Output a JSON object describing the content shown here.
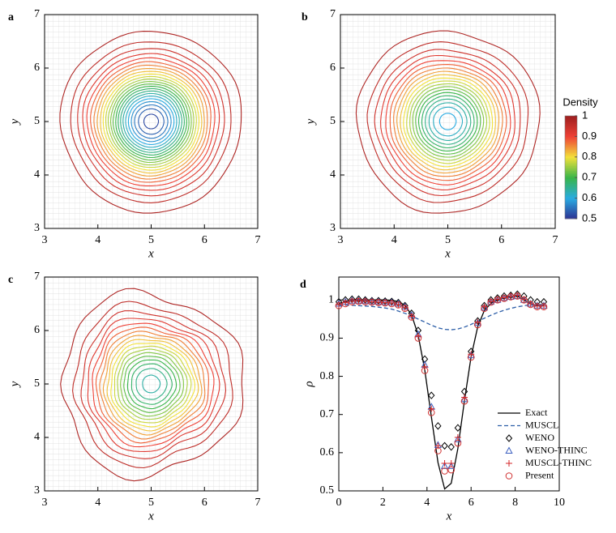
{
  "chart_data": [
    {
      "type": "contour",
      "panel_label": "a",
      "xlabel": "x",
      "ylabel": "y",
      "xlim": [
        3,
        7
      ],
      "ylim": [
        3,
        7
      ],
      "xticks": [
        3,
        4,
        5,
        6,
        7
      ],
      "yticks": [
        3,
        4,
        5,
        6,
        7
      ],
      "levels": [
        0.52,
        0.54,
        0.56,
        0.58,
        0.6,
        0.62,
        0.64,
        0.66,
        0.68,
        0.7,
        0.72,
        0.74,
        0.76,
        0.78,
        0.8,
        0.82,
        0.84,
        0.86,
        0.88,
        0.9,
        0.92,
        0.94,
        0.96,
        0.98
      ]
    },
    {
      "type": "contour",
      "panel_label": "b",
      "xlabel": "x",
      "ylabel": "y",
      "xlim": [
        3,
        7
      ],
      "ylim": [
        3,
        7
      ],
      "xticks": [
        3,
        4,
        5,
        6,
        7
      ],
      "yticks": [
        3,
        4,
        5,
        6,
        7
      ],
      "levels": [
        0.6,
        0.62,
        0.64,
        0.66,
        0.68,
        0.7,
        0.72,
        0.74,
        0.76,
        0.78,
        0.8,
        0.82,
        0.84,
        0.86,
        0.88,
        0.9,
        0.92,
        0.94,
        0.96,
        0.98
      ]
    },
    {
      "type": "contour",
      "panel_label": "c",
      "xlabel": "x",
      "ylabel": "y",
      "xlim": [
        3,
        7
      ],
      "ylim": [
        3,
        7
      ],
      "xticks": [
        3,
        4,
        5,
        6,
        7
      ],
      "yticks": [
        3,
        4,
        5,
        6,
        7
      ],
      "levels": [
        0.64,
        0.66,
        0.68,
        0.7,
        0.72,
        0.74,
        0.76,
        0.78,
        0.8,
        0.82,
        0.84,
        0.86,
        0.88,
        0.9,
        0.92,
        0.94,
        0.96,
        0.98
      ]
    },
    {
      "type": "line",
      "panel_label": "d",
      "xlabel": "x",
      "ylabel": "ρ",
      "xlim": [
        0,
        10
      ],
      "ylim": [
        0.5,
        1.06
      ],
      "xticks": [
        0,
        2,
        4,
        6,
        8,
        10
      ],
      "yticks": [
        0.5,
        0.6,
        0.7,
        0.8,
        0.9,
        1
      ],
      "x": [
        0,
        0.3,
        0.6,
        0.9,
        1.2,
        1.5,
        1.8,
        2.1,
        2.4,
        2.7,
        3.0,
        3.3,
        3.6,
        3.9,
        4.2,
        4.5,
        4.8,
        5.1,
        5.4,
        5.7,
        6.0,
        6.3,
        6.6,
        6.9,
        7.2,
        7.5,
        7.8,
        8.1,
        8.4,
        8.7,
        9.0,
        9.3
      ],
      "series": [
        {
          "name": "Exact",
          "color": "#000000",
          "style": "solid",
          "values": [
            0.99,
            0.995,
            1.0,
            1.0,
            1.0,
            1.0,
            1.0,
            1.0,
            0.999,
            0.996,
            0.986,
            0.961,
            0.908,
            0.816,
            0.694,
            0.574,
            0.505,
            0.52,
            0.611,
            0.736,
            0.851,
            0.93,
            0.972,
            0.991,
            1.0,
            1.005,
            1.01,
            1.01,
            1.0,
            0.99,
            0.985,
            0.985
          ]
        },
        {
          "name": "MUSCL",
          "color": "#2e5fa8",
          "style": "dashed",
          "values": [
            0.985,
            0.986,
            0.986,
            0.985,
            0.984,
            0.983,
            0.981,
            0.979,
            0.976,
            0.971,
            0.965,
            0.958,
            0.95,
            0.942,
            0.934,
            0.927,
            0.923,
            0.922,
            0.924,
            0.929,
            0.936,
            0.944,
            0.952,
            0.96,
            0.967,
            0.973,
            0.978,
            0.982,
            0.985,
            0.987,
            0.988,
            0.988
          ]
        },
        {
          "name": "WENO",
          "color": "#000000",
          "style": "diamond",
          "values": [
            0.995,
            1.0,
            1.002,
            1.002,
            1.0,
            0.998,
            0.998,
            0.997,
            0.996,
            0.993,
            0.985,
            0.965,
            0.92,
            0.845,
            0.75,
            0.67,
            0.618,
            0.615,
            0.665,
            0.76,
            0.865,
            0.945,
            0.985,
            1.0,
            1.005,
            1.01,
            1.012,
            1.015,
            1.01,
            1.0,
            0.995,
            0.995
          ]
        },
        {
          "name": "WENO-THINC",
          "color": "#3b5fc0",
          "style": "triangle",
          "values": [
            0.99,
            0.995,
            0.998,
            0.998,
            0.997,
            0.996,
            0.995,
            0.994,
            0.993,
            0.99,
            0.982,
            0.96,
            0.91,
            0.83,
            0.72,
            0.62,
            0.565,
            0.565,
            0.635,
            0.74,
            0.855,
            0.94,
            0.98,
            0.995,
            1.0,
            1.005,
            1.008,
            1.01,
            1.0,
            0.99,
            0.985,
            0.985
          ]
        },
        {
          "name": "MUSCL-THINC",
          "color": "#d62728",
          "style": "plus",
          "values": [
            0.988,
            0.993,
            0.997,
            0.998,
            0.997,
            0.995,
            0.994,
            0.993,
            0.992,
            0.988,
            0.98,
            0.957,
            0.905,
            0.825,
            0.715,
            0.618,
            0.572,
            0.572,
            0.64,
            0.745,
            0.858,
            0.942,
            0.982,
            0.996,
            1.002,
            1.006,
            1.01,
            1.012,
            1.002,
            0.99,
            0.984,
            0.984
          ]
        },
        {
          "name": "Present",
          "color": "#d03030",
          "style": "circle",
          "values": [
            0.985,
            0.99,
            0.995,
            0.996,
            0.995,
            0.994,
            0.993,
            0.992,
            0.99,
            0.987,
            0.978,
            0.955,
            0.9,
            0.815,
            0.705,
            0.605,
            0.552,
            0.555,
            0.625,
            0.735,
            0.85,
            0.935,
            0.978,
            0.994,
            1.0,
            1.004,
            1.008,
            1.01,
            1.0,
            0.988,
            0.982,
            0.982
          ]
        }
      ]
    }
  ],
  "colorbar": {
    "title": "Density",
    "lim": [
      0.5,
      1
    ],
    "ticks": [
      0.5,
      0.6,
      0.7,
      0.8,
      0.9,
      1
    ],
    "colormap": [
      "#2e3192",
      "#29abe2",
      "#39b54a",
      "#f2e13a",
      "#ef4136",
      "#9e1f1f"
    ]
  }
}
